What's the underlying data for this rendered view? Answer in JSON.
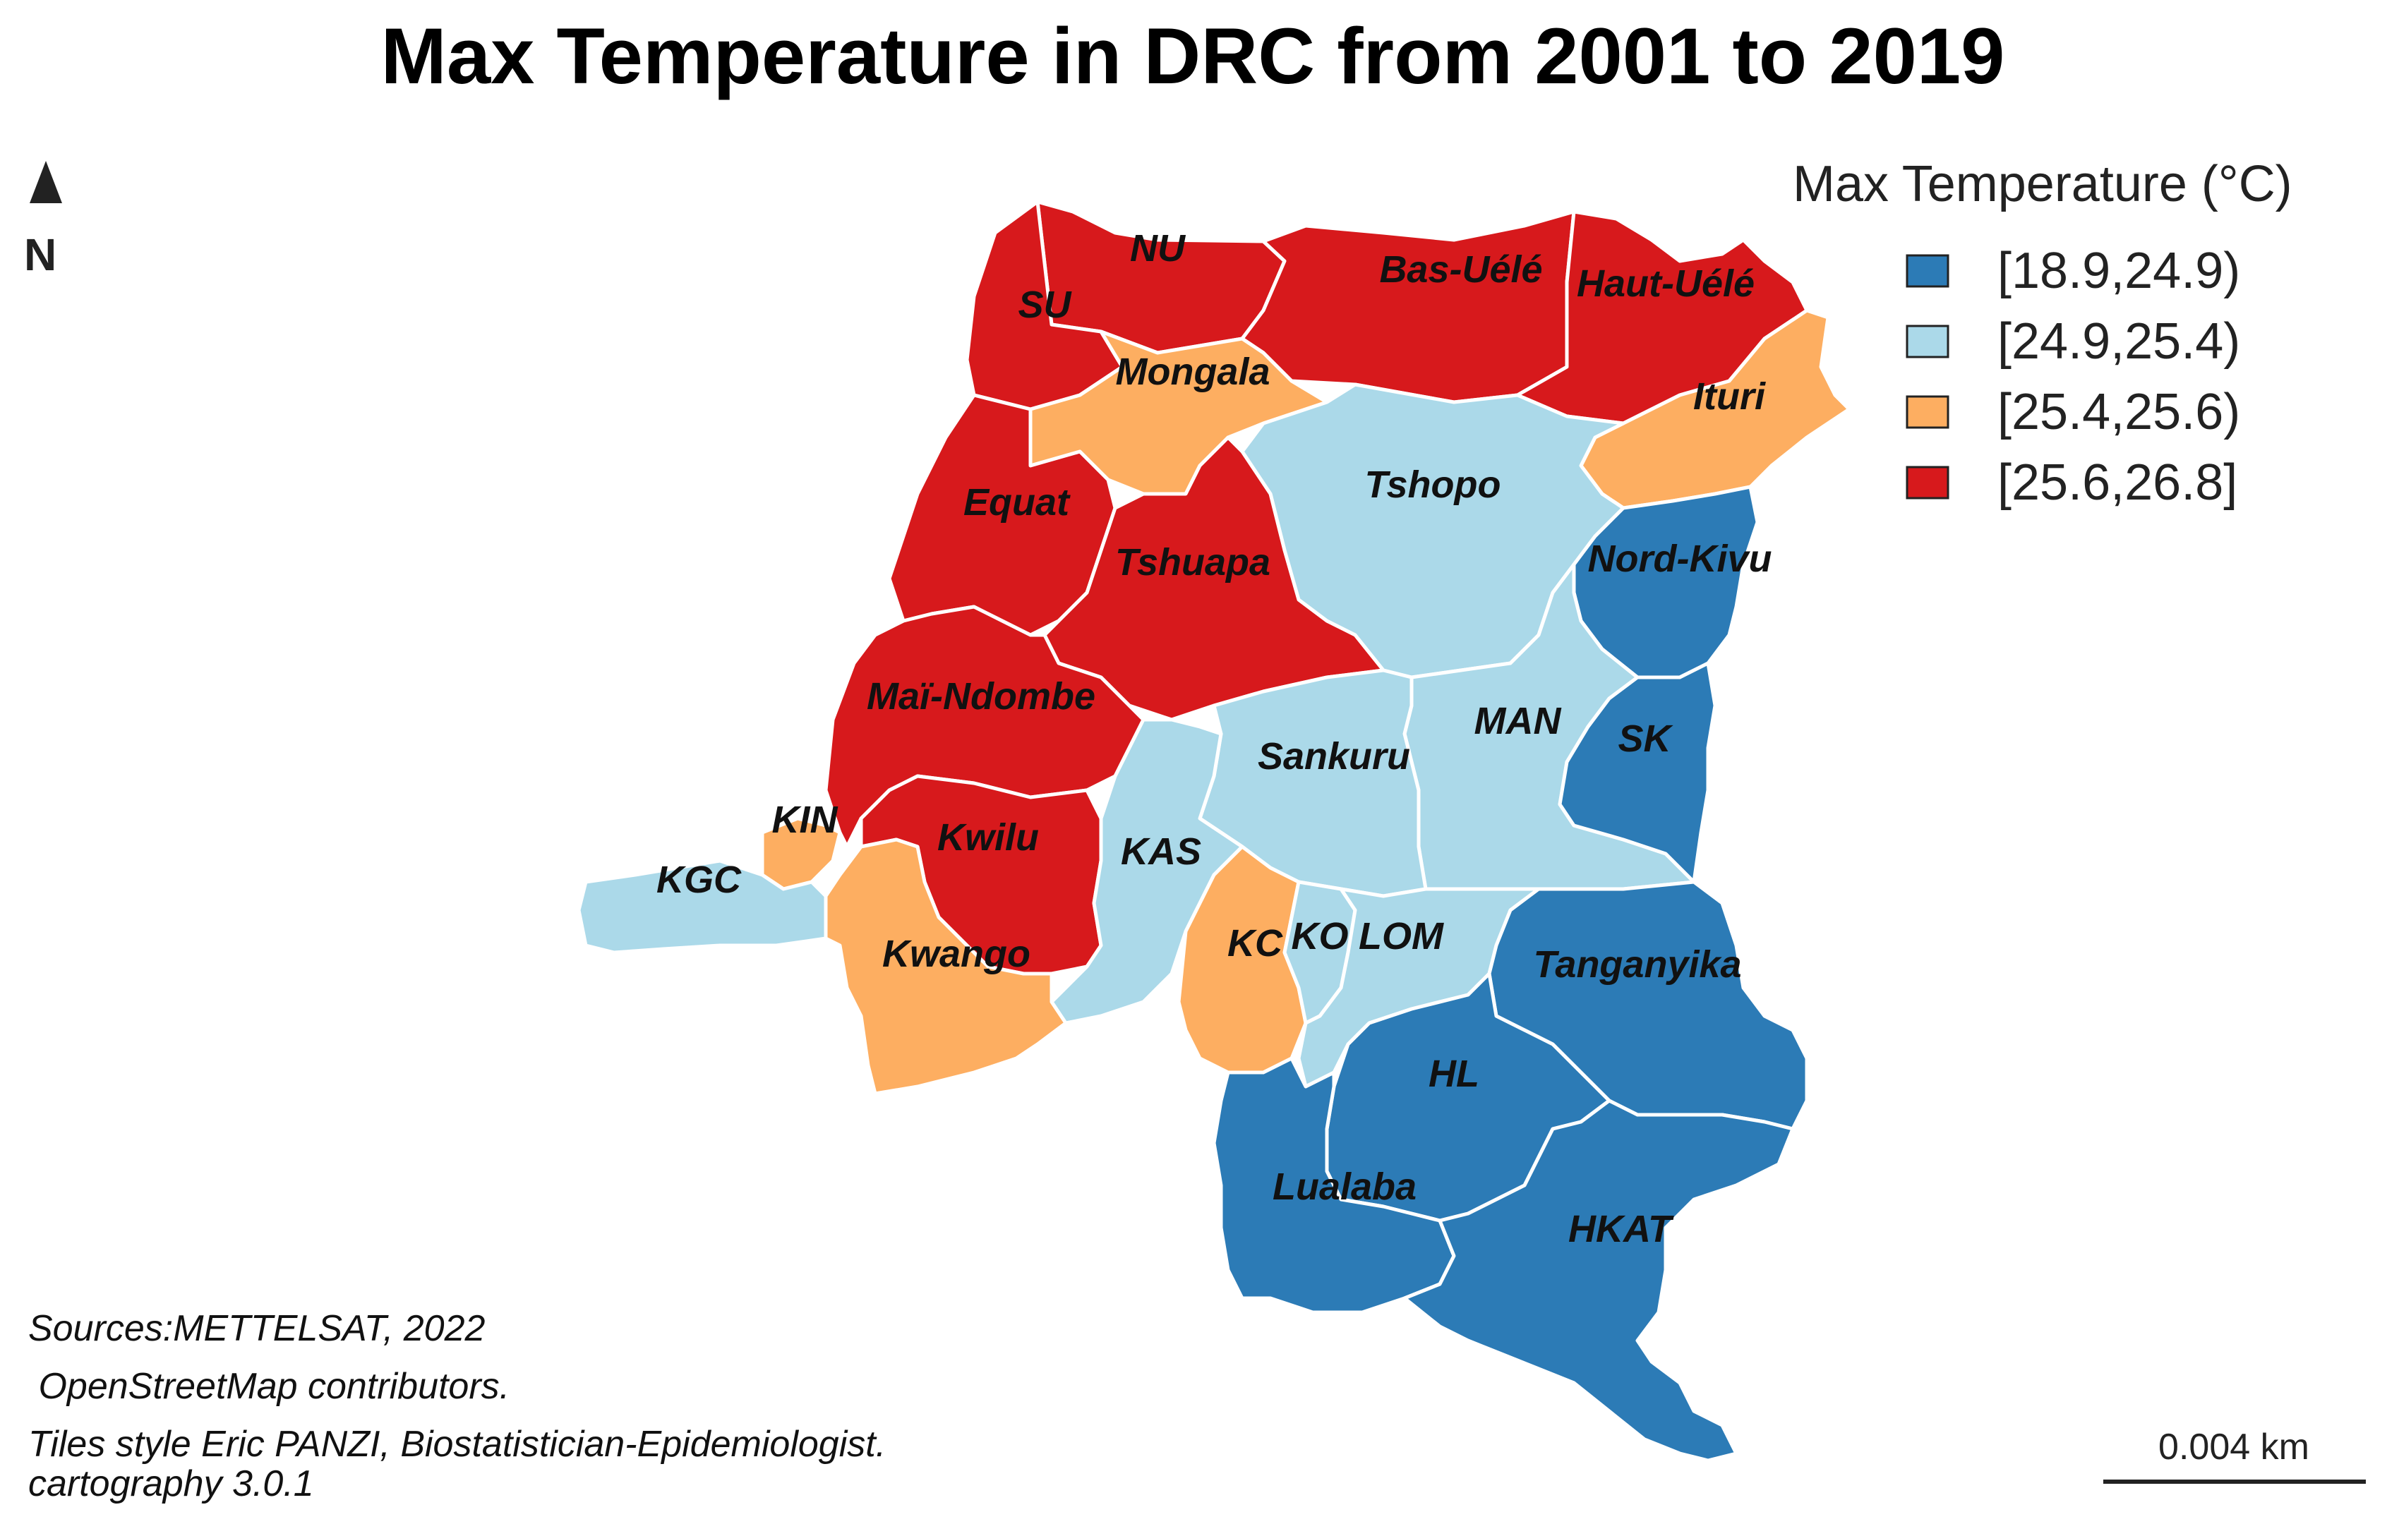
{
  "title": "Max Temperature in DRC from 2001 to 2019",
  "north_arrow": {
    "label": "N",
    "icon": "north-arrow-icon"
  },
  "legend": {
    "title": "Max Temperature (°C)",
    "classes": [
      {
        "label": "[18.9,24.9)",
        "color": "#2c7bb6"
      },
      {
        "label": "[24.9,25.4)",
        "color": "#abd9e9"
      },
      {
        "label": "[25.4,25.6)",
        "color": "#fdae61"
      },
      {
        "label": "[25.6,26.8]",
        "color": "#d7191c"
      }
    ]
  },
  "regions": [
    {
      "id": "NU",
      "label": "NU",
      "class": 3
    },
    {
      "id": "SU",
      "label": "SU",
      "class": 3
    },
    {
      "id": "Bas-Uele",
      "label": "Bas-Uélé",
      "class": 3
    },
    {
      "id": "Haut-Uele",
      "label": "Haut-Uélé",
      "class": 3
    },
    {
      "id": "Mongala",
      "label": "Mongala",
      "class": 2
    },
    {
      "id": "Ituri",
      "label": "Ituri",
      "class": 2
    },
    {
      "id": "Equat",
      "label": "Equat",
      "class": 3
    },
    {
      "id": "Tshopo",
      "label": "Tshopo",
      "class": 1
    },
    {
      "id": "Tshuapa",
      "label": "Tshuapa",
      "class": 3
    },
    {
      "id": "Nord-Kivu",
      "label": "Nord-Kivu",
      "class": 0
    },
    {
      "id": "Mai-Ndombe",
      "label": "Maï-Ndombe",
      "class": 3
    },
    {
      "id": "MAN",
      "label": "MAN",
      "class": 1
    },
    {
      "id": "SK",
      "label": "SK",
      "class": 0
    },
    {
      "id": "Sankuru",
      "label": "Sankuru",
      "class": 1
    },
    {
      "id": "KIN",
      "label": "KIN",
      "class": 2
    },
    {
      "id": "Kwilu",
      "label": "Kwilu",
      "class": 3
    },
    {
      "id": "KAS",
      "label": "KAS",
      "class": 1
    },
    {
      "id": "KGC",
      "label": "KGC",
      "class": 1
    },
    {
      "id": "KC",
      "label": "KC",
      "class": 2
    },
    {
      "id": "KO",
      "label": "KO",
      "class": 1
    },
    {
      "id": "LOM",
      "label": "LOM",
      "class": 1
    },
    {
      "id": "Kwango",
      "label": "Kwango",
      "class": 2
    },
    {
      "id": "Tanganyika",
      "label": "Tanganyika",
      "class": 0
    },
    {
      "id": "HL",
      "label": "HL",
      "class": 0
    },
    {
      "id": "Lualaba",
      "label": "Lualaba",
      "class": 0
    },
    {
      "id": "HKAT",
      "label": "HKAT",
      "class": 0
    }
  ],
  "credits": [
    "Sources:METTELSAT, 2022",
    " OpenStreetMap contributors.",
    "Tiles style Eric PANZI, Biostatistician-Epidemiologist.",
    "cartography 3.0.1"
  ],
  "scale_bar": {
    "label": "0.004 km"
  }
}
